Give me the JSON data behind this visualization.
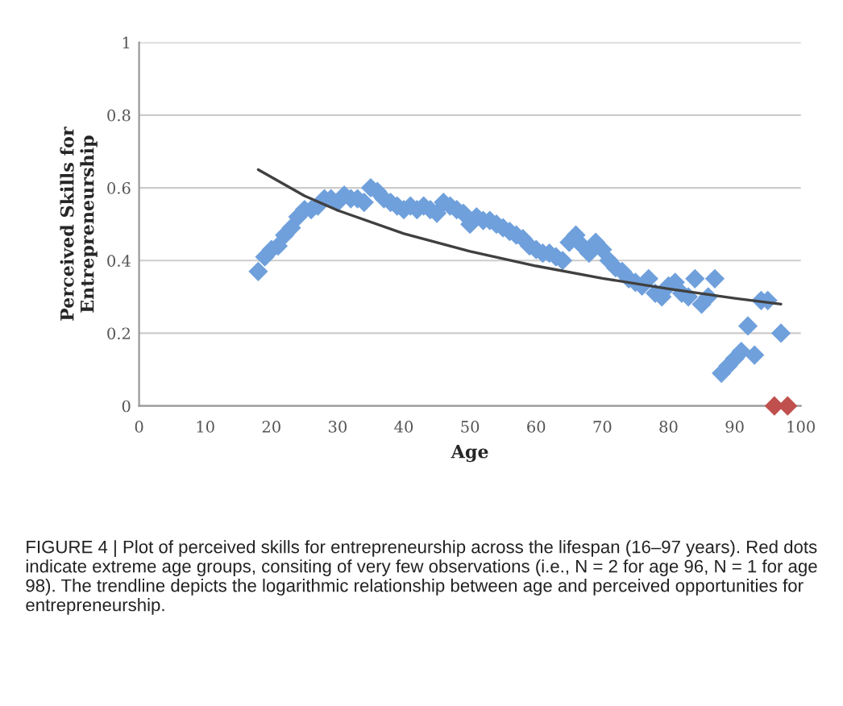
{
  "chart_data": {
    "type": "scatter",
    "xlabel": "Age",
    "ylabel": "Perceived Skills for\nEntrepreneurship",
    "xlim": [
      0,
      100
    ],
    "xticks": [
      0,
      10,
      20,
      30,
      40,
      50,
      60,
      70,
      80,
      90,
      100
    ],
    "ylim": [
      0,
      1
    ],
    "yticks": [
      0,
      0.2,
      0.4,
      0.6,
      0.8,
      1
    ],
    "grid": "y",
    "marker": "diamond",
    "series": [
      {
        "color": "#6fa0dc",
        "x": [
          18,
          19,
          20,
          21,
          22,
          23,
          24,
          25,
          26,
          27,
          28,
          29,
          30,
          31,
          32,
          33,
          34,
          35,
          36,
          37,
          38,
          39,
          40,
          41,
          42,
          43,
          44,
          45,
          46,
          47,
          48,
          49,
          50,
          51,
          52,
          53,
          54,
          55,
          56,
          57,
          58,
          59,
          60,
          61,
          62,
          63,
          64,
          65,
          66,
          67,
          68,
          69,
          70,
          71,
          72,
          73,
          74,
          75,
          76,
          77,
          78,
          79,
          80,
          81,
          82,
          83,
          84,
          85,
          86,
          87,
          88,
          89,
          90,
          91,
          92,
          93,
          94,
          95,
          97
        ],
        "values": [
          0.37,
          0.41,
          0.43,
          0.44,
          0.47,
          0.49,
          0.52,
          0.54,
          0.54,
          0.55,
          0.57,
          0.57,
          0.56,
          0.58,
          0.57,
          0.57,
          0.56,
          0.6,
          0.59,
          0.57,
          0.56,
          0.55,
          0.54,
          0.55,
          0.54,
          0.55,
          0.54,
          0.53,
          0.56,
          0.55,
          0.54,
          0.53,
          0.5,
          0.52,
          0.51,
          0.51,
          0.5,
          0.49,
          0.48,
          0.47,
          0.46,
          0.44,
          0.43,
          0.42,
          0.42,
          0.41,
          0.4,
          0.45,
          0.47,
          0.44,
          0.42,
          0.45,
          0.43,
          0.4,
          0.38,
          0.37,
          0.35,
          0.34,
          0.33,
          0.35,
          0.31,
          0.3,
          0.33,
          0.34,
          0.31,
          0.3,
          0.35,
          0.28,
          0.3,
          0.35,
          0.09,
          0.11,
          0.13,
          0.15,
          0.22,
          0.14,
          0.29,
          0.29,
          0.2
        ]
      },
      {
        "color": "#c0504d",
        "x": [
          96,
          98
        ],
        "values": [
          0,
          0
        ]
      },
      {
        "type": "line",
        "color": "#404040",
        "marker": "none",
        "x": [
          18,
          25,
          30,
          40,
          50,
          60,
          70,
          80,
          90,
          97
        ],
        "values": [
          0.65,
          0.578,
          0.538,
          0.474,
          0.425,
          0.385,
          0.351,
          0.322,
          0.296,
          0.28
        ]
      }
    ],
    "annotations": [
      "FIGURE 4 | Plot of perceived skills for entrepreneurship across the lifespan (16–97 years). Red dots indicate extreme age groups, consiting of very few observations (i.e., N = 2 for age 96, N = 1 for age 98). The trendline depicts the logarithmic relationship between age and perceived opportunities for entrepreneurship."
    ]
  }
}
